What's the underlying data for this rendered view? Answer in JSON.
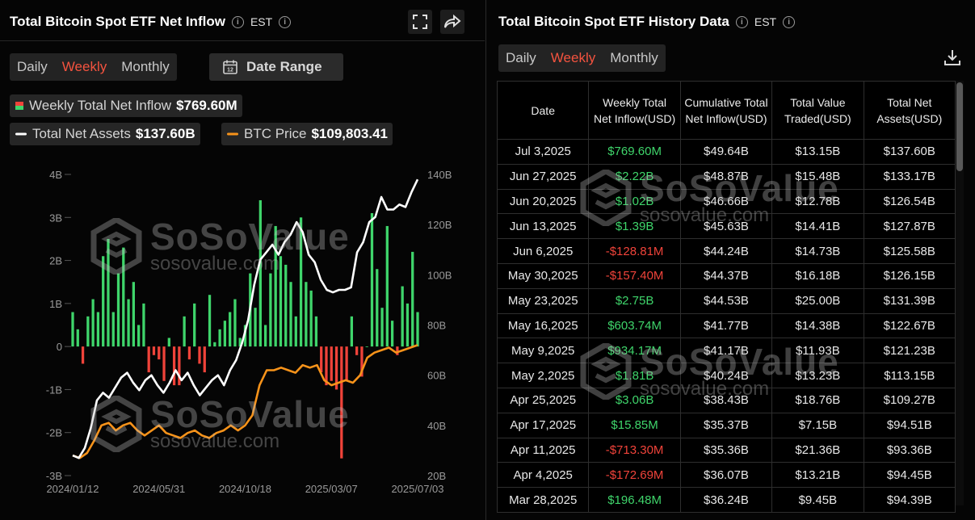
{
  "left": {
    "title": "Total Bitcoin Spot ETF Net Inflow",
    "timezone": "EST",
    "tabs": [
      "Daily",
      "Weekly",
      "Monthly"
    ],
    "active_tab": "Weekly",
    "date_range_label": "Date Range",
    "legend": {
      "inflow_label": "Weekly Total Net Inflow",
      "inflow_value": "$769.60M",
      "assets_label": "Total Net Assets",
      "assets_value": "$137.60B",
      "btc_label": "BTC Price",
      "btc_value": "$109,803.41"
    }
  },
  "right": {
    "title": "Total Bitcoin Spot ETF History Data",
    "timezone": "EST",
    "tabs": [
      "Daily",
      "Weekly",
      "Monthly"
    ],
    "active_tab": "Weekly",
    "columns": [
      "Date",
      "Weekly Total Net Inflow(USD)",
      "Cumulative Total Net Inflow(USD)",
      "Total Value Traded(USD)",
      "Total Net Assets(USD)"
    ],
    "rows": [
      {
        "date": "Jul 3,2025",
        "inflow": "$769.60M",
        "cumulative": "$49.64B",
        "traded": "$13.15B",
        "assets": "$137.60B",
        "sign": "pos"
      },
      {
        "date": "Jun 27,2025",
        "inflow": "$2.22B",
        "cumulative": "$48.87B",
        "traded": "$15.48B",
        "assets": "$133.17B",
        "sign": "pos"
      },
      {
        "date": "Jun 20,2025",
        "inflow": "$1.02B",
        "cumulative": "$46.66B",
        "traded": "$12.78B",
        "assets": "$126.54B",
        "sign": "pos"
      },
      {
        "date": "Jun 13,2025",
        "inflow": "$1.39B",
        "cumulative": "$45.63B",
        "traded": "$14.41B",
        "assets": "$127.87B",
        "sign": "pos"
      },
      {
        "date": "Jun 6,2025",
        "inflow": "-$128.81M",
        "cumulative": "$44.24B",
        "traded": "$14.73B",
        "assets": "$125.58B",
        "sign": "neg"
      },
      {
        "date": "May 30,2025",
        "inflow": "-$157.40M",
        "cumulative": "$44.37B",
        "traded": "$16.18B",
        "assets": "$126.15B",
        "sign": "neg"
      },
      {
        "date": "May 23,2025",
        "inflow": "$2.75B",
        "cumulative": "$44.53B",
        "traded": "$25.00B",
        "assets": "$131.39B",
        "sign": "pos"
      },
      {
        "date": "May 16,2025",
        "inflow": "$603.74M",
        "cumulative": "$41.77B",
        "traded": "$14.38B",
        "assets": "$122.67B",
        "sign": "pos"
      },
      {
        "date": "May 9,2025",
        "inflow": "$934.17M",
        "cumulative": "$41.17B",
        "traded": "$11.93B",
        "assets": "$121.23B",
        "sign": "pos"
      },
      {
        "date": "May 2,2025",
        "inflow": "$1.81B",
        "cumulative": "$40.24B",
        "traded": "$13.23B",
        "assets": "$113.15B",
        "sign": "pos"
      },
      {
        "date": "Apr 25,2025",
        "inflow": "$3.06B",
        "cumulative": "$38.43B",
        "traded": "$18.76B",
        "assets": "$109.27B",
        "sign": "pos"
      },
      {
        "date": "Apr 17,2025",
        "inflow": "$15.85M",
        "cumulative": "$35.37B",
        "traded": "$7.15B",
        "assets": "$94.51B",
        "sign": "pos"
      },
      {
        "date": "Apr 11,2025",
        "inflow": "-$713.30M",
        "cumulative": "$35.36B",
        "traded": "$21.36B",
        "assets": "$93.36B",
        "sign": "neg"
      },
      {
        "date": "Apr 4,2025",
        "inflow": "-$172.69M",
        "cumulative": "$36.07B",
        "traded": "$13.21B",
        "assets": "$94.45B",
        "sign": "neg"
      },
      {
        "date": "Mar 28,2025",
        "inflow": "$196.48M",
        "cumulative": "$36.24B",
        "traded": "$9.45B",
        "assets": "$94.39B",
        "sign": "pos"
      }
    ]
  },
  "watermark": {
    "brand": "SoSoValue",
    "site": "sosovalue.com"
  },
  "colors": {
    "positive": "#3fd56b",
    "negative": "#f0433a",
    "active_tab": "#f4533f",
    "assets_line": "#ffffff",
    "btc_line": "#f7931a"
  },
  "icons": [
    "info-icon",
    "fullscreen-icon",
    "share-icon",
    "calendar-icon",
    "download-icon"
  ],
  "chart_data": {
    "type": "bar",
    "title": "Total Bitcoin Spot ETF Net Inflow",
    "x_tick_labels": [
      "2024/01/12",
      "2024/05/31",
      "2024/10/18",
      "2025/03/07",
      "2025/07/03"
    ],
    "left_axis": {
      "ticks": [
        "4B",
        "3B",
        "2B",
        "1B",
        "0",
        "-1B",
        "-2B",
        "-3B"
      ],
      "ylim": [
        -3,
        4
      ],
      "unit": "B USD"
    },
    "right_axis": {
      "ticks": [
        "140B",
        "120B",
        "100B",
        "80B",
        "60B",
        "40B",
        "20B"
      ],
      "ylim": [
        20,
        140
      ],
      "unit": "B USD"
    },
    "legend_placement": "top",
    "grid": false,
    "series": [
      {
        "name": "Weekly Total Net Inflow",
        "kind": "bar",
        "axis": "left",
        "values": [
          0.8,
          0.4,
          -0.4,
          0.7,
          1.1,
          0.8,
          2.1,
          2.5,
          0.8,
          1.7,
          2.3,
          1.1,
          1.5,
          0.5,
          1.0,
          -0.6,
          -0.2,
          -0.3,
          -0.8,
          0.2,
          -0.9,
          -0.9,
          0.7,
          -0.3,
          1.0,
          -0.4,
          -0.6,
          1.2,
          0.1,
          0.4,
          0.6,
          0.8,
          1.1,
          0.2,
          0.5,
          1.7,
          0.9,
          3.4,
          0.5,
          1.7,
          2.8,
          2.1,
          1.9,
          1.5,
          0.7,
          3.0,
          1.5,
          1.3,
          0.7,
          -0.6,
          -0.9,
          -0.8,
          -1.0,
          -2.6,
          -0.8,
          0.7,
          -0.2,
          -0.7,
          0.0,
          3.1,
          1.8,
          0.9,
          2.8,
          0.6,
          -0.2,
          1.4,
          1.0,
          2.2,
          0.8
        ]
      },
      {
        "name": "Total Net Assets",
        "kind": "line",
        "axis": "right",
        "values": [
          28,
          27,
          31,
          39,
          50,
          53,
          51,
          55,
          59,
          61,
          57,
          54,
          58,
          60,
          56,
          53,
          57,
          62,
          58,
          61,
          56,
          52,
          55,
          58,
          60,
          56,
          62,
          66,
          73,
          82,
          96,
          106,
          109,
          112,
          108,
          113,
          116,
          121,
          117,
          108,
          105,
          98,
          94,
          93,
          94,
          94,
          95,
          109,
          113,
          121,
          123,
          131,
          126,
          126,
          128,
          127,
          133,
          138
        ]
      },
      {
        "name": "BTC Price",
        "kind": "line",
        "axis": "right",
        "values": [
          28,
          27,
          29,
          34,
          40,
          41,
          38,
          40,
          41,
          38,
          36,
          38,
          40,
          37,
          36,
          35,
          37,
          38,
          36,
          35,
          37,
          38,
          40,
          38,
          40,
          44,
          56,
          62,
          62,
          63,
          62,
          61,
          64,
          63,
          64,
          58,
          56,
          57,
          58,
          57,
          60,
          67,
          69,
          70,
          71,
          69,
          70,
          71,
          72
        ]
      }
    ]
  }
}
